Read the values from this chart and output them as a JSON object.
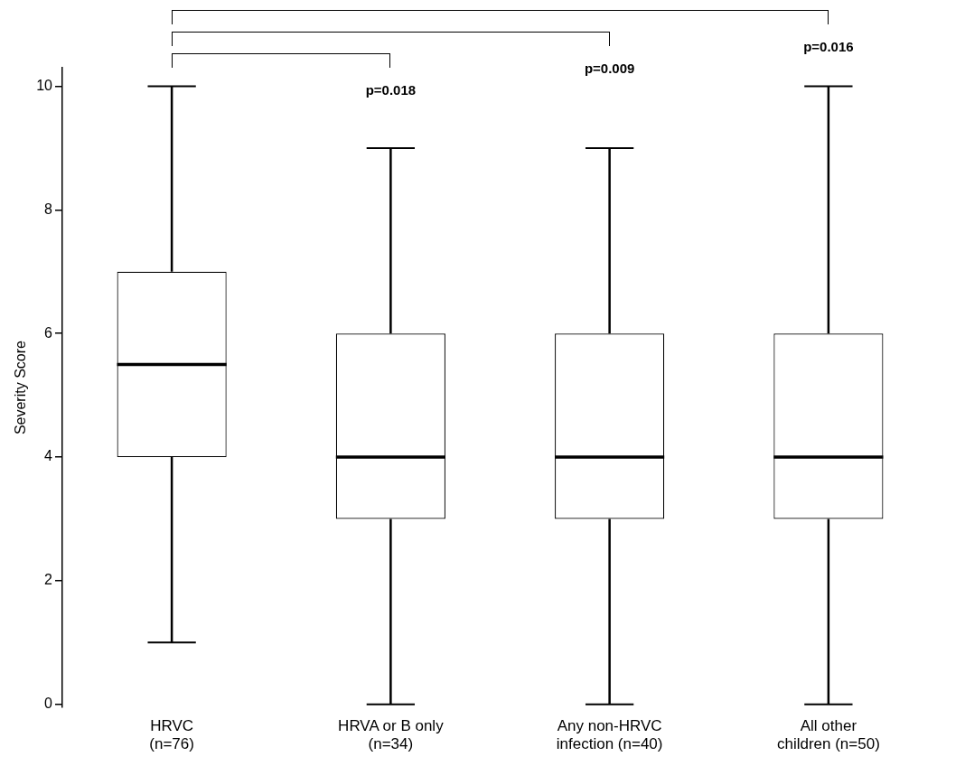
{
  "chart_data": {
    "type": "box",
    "ylabel": "Severity Score",
    "categories": [
      "HRVC\n(n=76)",
      "HRVA or B only\n(n=34)",
      "Any non-HRVC\ninfection (n=40)",
      "All other\nchildren (n=50)"
    ],
    "boxes": [
      {
        "low": 1,
        "q1": 4,
        "median": 5.5,
        "q3": 7,
        "high": 10
      },
      {
        "low": 0,
        "q1": 3,
        "median": 4,
        "q3": 6,
        "high": 9
      },
      {
        "low": 0,
        "q1": 3,
        "median": 4,
        "q3": 6,
        "high": 9
      },
      {
        "low": 0,
        "q1": 3,
        "median": 4,
        "q3": 6,
        "high": 10
      }
    ],
    "color": "#000000",
    "ylim": [
      -0.05,
      10.3
    ],
    "yticks": [
      0,
      2,
      4,
      6,
      8,
      10
    ],
    "grid": false,
    "legend": false,
    "annotations": [
      "p=0.018",
      "p=0.009",
      "p=0.016"
    ]
  }
}
